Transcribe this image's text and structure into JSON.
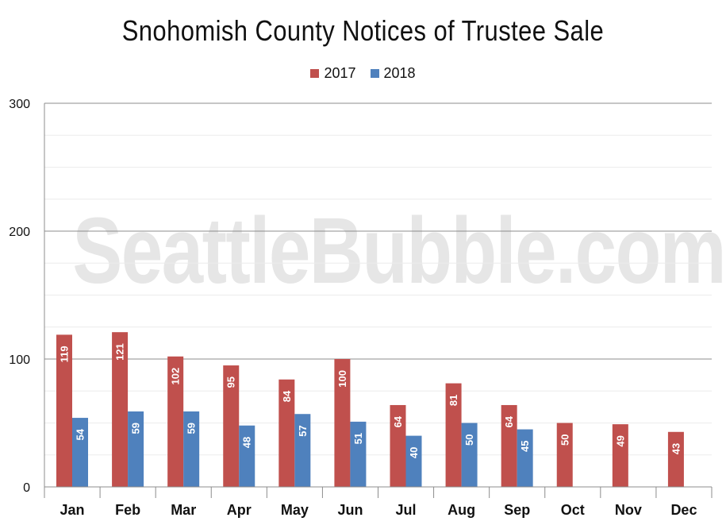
{
  "chart_data": {
    "type": "bar",
    "title": "Snohomish County Notices of Trustee Sale",
    "categories": [
      "Jan",
      "Feb",
      "Mar",
      "Apr",
      "May",
      "Jun",
      "Jul",
      "Aug",
      "Sep",
      "Oct",
      "Nov",
      "Dec"
    ],
    "series": [
      {
        "name": "2017",
        "color": "#c0504d",
        "values": [
          119,
          121,
          102,
          95,
          84,
          100,
          64,
          81,
          64,
          50,
          49,
          43
        ]
      },
      {
        "name": "2018",
        "color": "#4f81bd",
        "values": [
          54,
          59,
          59,
          48,
          57,
          51,
          40,
          50,
          45,
          null,
          null,
          null
        ]
      }
    ],
    "ylim": [
      0,
      300
    ],
    "yticks": [
      0,
      100,
      200,
      300
    ],
    "grid": true,
    "legend_position": "top-center"
  },
  "watermark": "SeattleBubble.com"
}
